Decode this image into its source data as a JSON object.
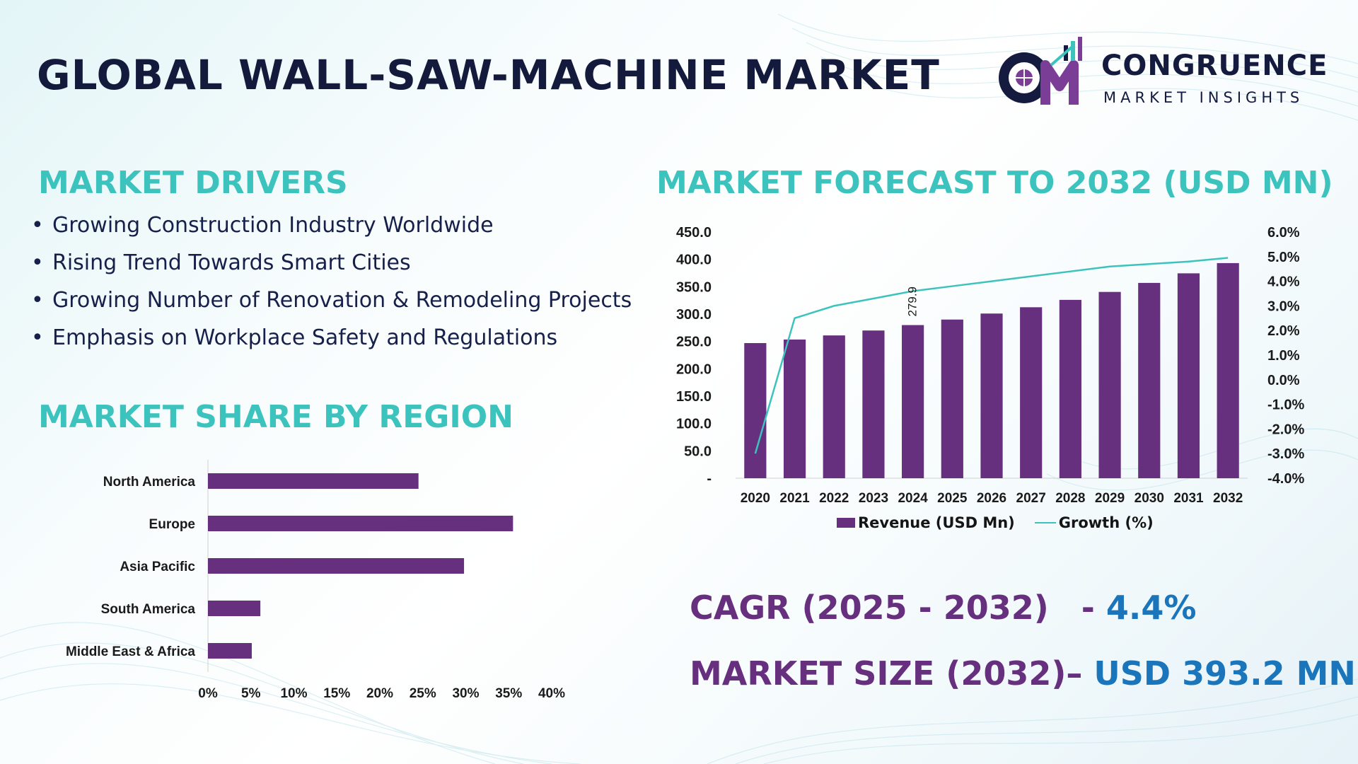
{
  "header": {
    "title": "GLOBAL WALL-SAW-MACHINE MARKET",
    "logo": {
      "mark": "CM",
      "name": "CONGRUENCE",
      "sub": "MARKET INSIGHTS"
    }
  },
  "drivers": {
    "title": "MARKET DRIVERS",
    "items": [
      "Growing Construction Industry Worldwide",
      "Rising Trend Towards Smart Cities",
      "Growing Number of Renovation & Remodeling Projects",
      "Emphasis on Workplace Safety and Regulations"
    ]
  },
  "region": {
    "title": "MARKET SHARE BY REGION"
  },
  "forecast": {
    "title": "MARKET FORECAST TO 2032 (USD MN)"
  },
  "stats": {
    "cagr_label": "CAGR (2025 - 2032)",
    "cagr_sep": "-",
    "cagr_value": "4.4%",
    "size_label": "MARKET SIZE (2032)",
    "size_sep": "–",
    "size_value": "USD 393.2 MN"
  },
  "colors": {
    "bar": "#66307e",
    "line": "#3dc3bd",
    "heading": "#3dc3bd",
    "title": "#131a3b",
    "value": "#1b75bb"
  },
  "chart_data": [
    {
      "type": "bar",
      "orientation": "horizontal",
      "categories": [
        "North America",
        "Europe",
        "Asia Pacific",
        "South America",
        "Middle East & Africa"
      ],
      "values": [
        24.5,
        35.5,
        29.8,
        6.1,
        5.1
      ],
      "xlim": [
        0,
        40
      ],
      "x_ticks": [
        "0%",
        "5%",
        "10%",
        "15%",
        "20%",
        "25%",
        "30%",
        "35%",
        "40%"
      ],
      "grid": false
    },
    {
      "type": "bar",
      "categories": [
        "2020",
        "2021",
        "2022",
        "2023",
        "2024",
        "2025",
        "2026",
        "2027",
        "2028",
        "2029",
        "2030",
        "2031",
        "2032"
      ],
      "series": [
        {
          "name": "Revenue (USD Mn)",
          "type": "bar",
          "axis": "left",
          "values": [
            247.0,
            253.5,
            261.0,
            270.0,
            279.9,
            290.0,
            301.0,
            312.5,
            326.0,
            340.5,
            357.0,
            374.5,
            393.2
          ]
        },
        {
          "name": "Growth (%)",
          "type": "line",
          "axis": "right",
          "values": [
            -3.0,
            2.5,
            3.0,
            3.3,
            3.6,
            3.8,
            4.0,
            4.2,
            4.4,
            4.6,
            4.7,
            4.8,
            4.95
          ]
        }
      ],
      "data_labels": [
        {
          "category": "2024",
          "text": "279.9"
        }
      ],
      "y_left_lim": [
        0,
        450
      ],
      "y_left_ticks": [
        "-",
        "50.0",
        "100.0",
        "150.0",
        "200.0",
        "250.0",
        "300.0",
        "350.0",
        "400.0",
        "450.0"
      ],
      "y_right_lim": [
        -4,
        6
      ],
      "y_right_ticks": [
        "-4.0%",
        "-3.0%",
        "-2.0%",
        "-1.0%",
        "0.0%",
        "1.0%",
        "2.0%",
        "3.0%",
        "4.0%",
        "5.0%",
        "6.0%"
      ],
      "legend": "bottom",
      "grid": false
    }
  ]
}
